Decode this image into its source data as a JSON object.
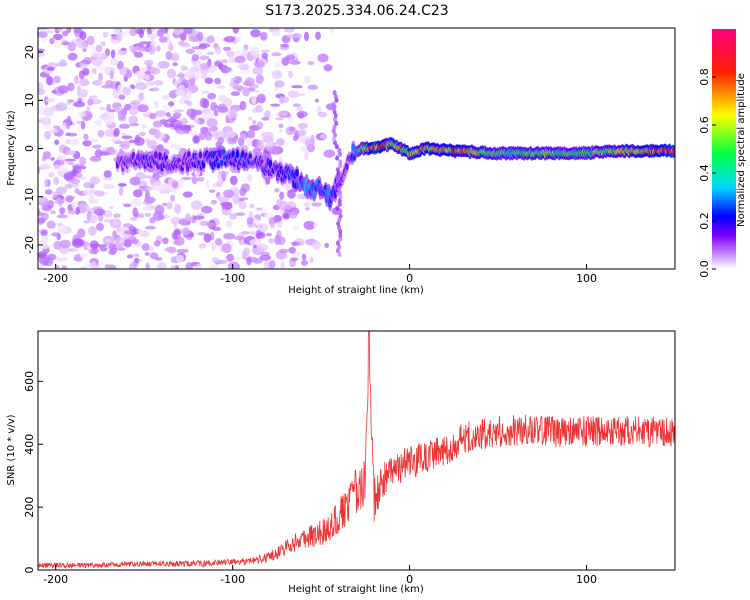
{
  "title": "S173.2025.334.06.24.C23",
  "chart_data": [
    {
      "type": "heatmap",
      "name": "spectrogram",
      "xlabel": "Height of straight line (km)",
      "ylabel": "Frequency (Hz)",
      "xlim": [
        -210,
        150
      ],
      "ylim": [
        -25,
        25
      ],
      "xticks": [
        -200,
        -100,
        0,
        100
      ],
      "yticks": [
        -20,
        -10,
        0,
        10,
        20
      ],
      "colorbar": {
        "label": "Normalized spectral amplitude",
        "range": [
          0,
          1
        ],
        "ticks": [
          0.0,
          0.2,
          0.4,
          0.6,
          0.8
        ],
        "colors": [
          "#ffffff",
          "#c98bff",
          "#7a00ff",
          "#0000ff",
          "#00d8ff",
          "#00ff40",
          "#ffff00",
          "#ff2000",
          "#ff0080"
        ]
      },
      "ridge": [
        {
          "x": -160,
          "f": -2.5,
          "a": 0.25
        },
        {
          "x": -150,
          "f": -2.5,
          "a": 0.3
        },
        {
          "x": -140,
          "f": -3.0,
          "a": 0.3
        },
        {
          "x": -130,
          "f": -3.0,
          "a": 0.28
        },
        {
          "x": -120,
          "f": -2.5,
          "a": 0.3
        },
        {
          "x": -105,
          "f": -2.0,
          "a": 0.38
        },
        {
          "x": -95,
          "f": -2.5,
          "a": 0.35
        },
        {
          "x": -85,
          "f": -3.5,
          "a": 0.3
        },
        {
          "x": -75,
          "f": -5.0,
          "a": 0.32
        },
        {
          "x": -65,
          "f": -6.0,
          "a": 0.4
        },
        {
          "x": -58,
          "f": -8.0,
          "a": 0.45
        },
        {
          "x": -50,
          "f": -9.0,
          "a": 0.4
        },
        {
          "x": -45,
          "f": -10.0,
          "a": 0.42
        },
        {
          "x": -40,
          "f": -7.0,
          "a": 0.3
        },
        {
          "x": -35,
          "f": -2.0,
          "a": 0.25
        },
        {
          "x": -28,
          "f": 0.0,
          "a": 0.55
        },
        {
          "x": -20,
          "f": 0.0,
          "a": 0.9
        },
        {
          "x": -10,
          "f": 1.0,
          "a": 0.7
        },
        {
          "x": 0,
          "f": -1.0,
          "a": 0.75
        },
        {
          "x": 10,
          "f": 0.0,
          "a": 0.8
        },
        {
          "x": 25,
          "f": -0.5,
          "a": 0.8
        },
        {
          "x": 50,
          "f": -1.0,
          "a": 0.6
        },
        {
          "x": 75,
          "f": -1.0,
          "a": 0.65
        },
        {
          "x": 95,
          "f": -1.0,
          "a": 0.6
        },
        {
          "x": 120,
          "f": -0.5,
          "a": 0.7
        },
        {
          "x": 150,
          "f": -0.5,
          "a": 0.9
        }
      ]
    },
    {
      "type": "line",
      "name": "snr",
      "xlabel": "Height of straight line (km)",
      "ylabel": "SNR (10 * v/v)",
      "xlim": [
        -210,
        150
      ],
      "ylim": [
        0,
        760
      ],
      "xticks": [
        -200,
        -100,
        0,
        100
      ],
      "yticks": [
        0,
        200,
        400,
        600
      ],
      "color": "#ee3333",
      "x": [
        -210,
        -180,
        -150,
        -120,
        -100,
        -90,
        -80,
        -70,
        -60,
        -50,
        -45,
        -40,
        -35,
        -30,
        -25,
        -23,
        -20,
        -15,
        -10,
        -5,
        0,
        10,
        20,
        30,
        40,
        50,
        60,
        70,
        80,
        90,
        100,
        110,
        120,
        130,
        140,
        150
      ],
      "y": [
        15,
        15,
        20,
        20,
        25,
        30,
        40,
        70,
        100,
        120,
        140,
        170,
        200,
        250,
        280,
        690,
        220,
        280,
        310,
        330,
        340,
        360,
        380,
        420,
        430,
        440,
        445,
        445,
        440,
        440,
        440,
        440,
        440,
        440,
        440,
        440
      ],
      "noise": [
        8,
        8,
        8,
        10,
        10,
        12,
        15,
        25,
        35,
        45,
        55,
        65,
        70,
        75,
        80,
        20,
        70,
        60,
        60,
        55,
        55,
        50,
        50,
        50,
        50,
        50,
        50,
        50,
        50,
        50,
        50,
        50,
        50,
        50,
        50,
        50
      ]
    }
  ]
}
